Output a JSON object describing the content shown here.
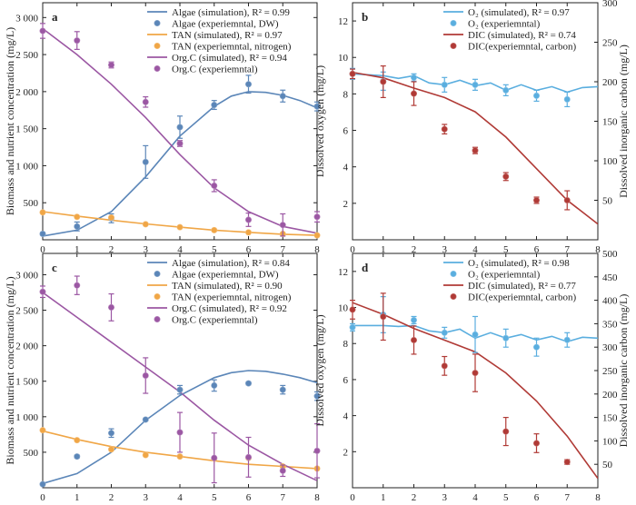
{
  "chart_data": [
    {
      "type": "line",
      "panel_label": "a",
      "xlabel": "Time (d)",
      "ylabel": "Biomass and nutrient concentration (mg/L)",
      "xlim": [
        0,
        8
      ],
      "ylim": [
        0,
        3200
      ],
      "xticks": [
        0,
        1,
        2,
        3,
        4,
        5,
        6,
        7,
        8
      ],
      "yticks": [
        500,
        1000,
        1500,
        2000,
        2500,
        3000
      ],
      "ytick_labels": [
        "500",
        "1 000",
        "1 500",
        "2 000",
        "2 500",
        "3 000"
      ],
      "legend_position": "top-right",
      "colors": {
        "algae": "#5b86b8",
        "tan": "#f0a646",
        "orgc": "#9b57a3"
      },
      "series": [
        {
          "name": "Algae (simulation), R² = 0.99",
          "kind": "line",
          "key": "algae",
          "x": [
            0,
            1,
            2,
            3,
            4,
            5,
            5.5,
            6,
            6.5,
            7,
            7.5,
            8
          ],
          "y": [
            50,
            130,
            380,
            850,
            1400,
            1800,
            1940,
            2000,
            1990,
            1950,
            1880,
            1780
          ]
        },
        {
          "name": "Algae (experiemntal, DW)",
          "kind": "points",
          "key": "algae",
          "x": [
            0,
            1,
            2,
            3,
            4,
            5,
            6,
            7,
            8
          ],
          "y": [
            80,
            180,
            290,
            1050,
            1520,
            1820,
            2100,
            1940,
            1800
          ],
          "err": [
            20,
            60,
            60,
            220,
            150,
            60,
            120,
            80,
            60
          ]
        },
        {
          "name": "TAN (simulated), R² = 0.97",
          "kind": "line",
          "key": "tan",
          "x": [
            0,
            1,
            2,
            3,
            4,
            5,
            6,
            7,
            8
          ],
          "y": [
            380,
            320,
            265,
            215,
            170,
            130,
            100,
            75,
            60
          ]
        },
        {
          "name": "TAN (experiemntal, nitrogen)",
          "kind": "points",
          "key": "tan",
          "x": [
            0,
            1,
            2,
            3,
            4,
            5,
            6,
            7,
            8
          ],
          "y": [
            370,
            310,
            300,
            210,
            170,
            130,
            100,
            80,
            60
          ],
          "err": [
            10,
            10,
            10,
            10,
            10,
            10,
            10,
            10,
            10
          ]
        },
        {
          "name": "Org.C (simulated), R² = 0.94",
          "kind": "line",
          "key": "orgc",
          "x": [
            0,
            1,
            2,
            3,
            4,
            5,
            6,
            7,
            8
          ],
          "y": [
            2850,
            2500,
            2100,
            1650,
            1150,
            700,
            380,
            180,
            90
          ]
        },
        {
          "name": "Org.C (experiemntal)",
          "kind": "points",
          "key": "orgc",
          "x": [
            0,
            1,
            2,
            3,
            4,
            5,
            6,
            7,
            8
          ],
          "y": [
            2820,
            2690,
            2360,
            1860,
            1300,
            730,
            270,
            200,
            310
          ],
          "err": [
            100,
            120,
            40,
            70,
            40,
            80,
            90,
            150,
            70
          ]
        }
      ]
    },
    {
      "type": "line",
      "panel_label": "b",
      "xlabel": "Time (d)",
      "ylabel": "Dissolved oxygen (mg/L)",
      "ylabel_right": "Dissolved inorganic carbon (mg/L)",
      "xlim": [
        0,
        8
      ],
      "ylim": [
        0,
        13
      ],
      "ylim_right": [
        0,
        300
      ],
      "xticks": [
        0,
        1,
        2,
        3,
        4,
        5,
        6,
        7,
        8
      ],
      "yticks": [
        2,
        4,
        6,
        8,
        10,
        12
      ],
      "yticks_right": [
        50,
        100,
        150,
        200,
        250,
        300
      ],
      "legend_position": "top-right",
      "colors": {
        "o2": "#5aaedf",
        "dic": "#b03a36"
      },
      "series": [
        {
          "name": "O₂ (simulated), R² = 0.97",
          "kind": "line",
          "key": "o2",
          "axis": "left",
          "x": [
            0,
            0.5,
            1,
            1.5,
            2,
            2.5,
            3,
            3.5,
            4,
            4.5,
            5,
            5.5,
            6,
            6.5,
            7,
            7.5,
            8
          ],
          "y": [
            9.1,
            9.05,
            9.0,
            8.85,
            9.0,
            8.6,
            8.5,
            8.75,
            8.45,
            8.6,
            8.2,
            8.5,
            8.2,
            8.4,
            8.1,
            8.35,
            8.4
          ]
        },
        {
          "name": "O₂ (experiemntal)",
          "kind": "points",
          "key": "o2",
          "axis": "left",
          "x": [
            0,
            1,
            2,
            3,
            4,
            5,
            6,
            7
          ],
          "y": [
            9.1,
            8.7,
            8.9,
            8.5,
            8.5,
            8.2,
            7.9,
            7.7
          ],
          "err": [
            0.3,
            0.5,
            0.2,
            0.4,
            0.3,
            0.3,
            0.3,
            0.4
          ]
        },
        {
          "name": "DIC (simulated), R² = 0.74",
          "kind": "line",
          "key": "dic",
          "axis": "right",
          "x": [
            0,
            1,
            2,
            3,
            4,
            5,
            6,
            7,
            8
          ],
          "y": [
            212,
            205,
            192,
            180,
            162,
            130,
            90,
            50,
            20
          ]
        },
        {
          "name": "DIC(experiemntal, carbon)",
          "kind": "points",
          "key": "dic",
          "axis": "right",
          "x": [
            0,
            1,
            2,
            3,
            4,
            5,
            6,
            7
          ],
          "y": [
            210,
            200,
            185,
            140,
            113,
            80,
            50,
            50
          ],
          "err": [
            6,
            20,
            15,
            6,
            4,
            5,
            4,
            12
          ]
        }
      ]
    },
    {
      "type": "line",
      "panel_label": "c",
      "xlabel": "Time (d)",
      "ylabel": "Biomass and nutrient concentration (mg/L)",
      "xlim": [
        0,
        8
      ],
      "ylim": [
        0,
        3300
      ],
      "xticks": [
        0,
        1,
        2,
        3,
        4,
        5,
        6,
        7,
        8
      ],
      "yticks": [
        500,
        1000,
        1500,
        2000,
        2500,
        3000
      ],
      "ytick_labels": [
        "500",
        "1 000",
        "1 500",
        "2 000",
        "2 500",
        "3 000"
      ],
      "legend_position": "top-right",
      "colors": {
        "algae": "#5b86b8",
        "tan": "#f0a646",
        "orgc": "#9b57a3"
      },
      "series": [
        {
          "name": "Algae (simulation), R² = 0.84",
          "kind": "line",
          "key": "algae",
          "x": [
            0,
            1,
            2,
            3,
            4,
            5,
            5.5,
            6,
            6.5,
            7,
            7.5,
            8
          ],
          "y": [
            60,
            200,
            500,
            950,
            1300,
            1550,
            1620,
            1650,
            1640,
            1600,
            1550,
            1480
          ]
        },
        {
          "name": "Algae (experiemntal, DW)",
          "kind": "points",
          "key": "algae",
          "x": [
            0,
            1,
            2,
            3,
            4,
            5,
            6,
            7,
            8
          ],
          "y": [
            50,
            440,
            770,
            960,
            1380,
            1440,
            1470,
            1380,
            1290
          ],
          "err": [
            10,
            20,
            60,
            10,
            60,
            80,
            20,
            60,
            60
          ]
        },
        {
          "name": "TAN (simulated), R² = 0.90",
          "kind": "line",
          "key": "tan",
          "x": [
            0,
            1,
            2,
            3,
            4,
            5,
            6,
            7,
            8
          ],
          "y": [
            800,
            680,
            580,
            500,
            440,
            380,
            330,
            300,
            270
          ]
        },
        {
          "name": "TAN (experiemntal, nitrogen)",
          "kind": "points",
          "key": "tan",
          "x": [
            0,
            1,
            2,
            3,
            4,
            5,
            6,
            7,
            8
          ],
          "y": [
            810,
            670,
            540,
            460,
            440,
            410,
            420,
            300,
            270
          ],
          "err": [
            10,
            10,
            10,
            10,
            10,
            10,
            10,
            10,
            10
          ]
        },
        {
          "name": "Org.C (simulated), R² = 0.92",
          "kind": "line",
          "key": "orgc",
          "x": [
            0,
            1,
            2,
            3,
            4,
            5,
            6,
            7,
            8
          ],
          "y": [
            2750,
            2400,
            2050,
            1700,
            1350,
            950,
            600,
            330,
            100
          ]
        },
        {
          "name": "Org.C (experiemntal)",
          "kind": "points",
          "key": "orgc",
          "x": [
            0,
            1,
            2,
            3,
            4,
            5,
            6,
            7,
            8
          ],
          "y": [
            2760,
            2850,
            2540,
            1580,
            780,
            420,
            430,
            240,
            520
          ],
          "err": [
            80,
            130,
            190,
            250,
            280,
            350,
            280,
            80,
            380
          ]
        }
      ]
    },
    {
      "type": "line",
      "panel_label": "d",
      "xlabel": "Time (d)",
      "ylabel": "Dissolved oxygen (mg/L)",
      "ylabel_right": "Dissolved inorganic carbon (mg/L)",
      "xlim": [
        0,
        8
      ],
      "ylim": [
        0,
        13
      ],
      "ylim_right": [
        0,
        500
      ],
      "xticks": [
        0,
        1,
        2,
        3,
        4,
        5,
        6,
        7,
        8
      ],
      "yticks": [
        2,
        4,
        6,
        8,
        10,
        12
      ],
      "yticks_right": [
        50,
        100,
        150,
        200,
        250,
        300,
        350,
        400,
        450,
        500
      ],
      "legend_position": "top-right",
      "colors": {
        "o2": "#5aaedf",
        "dic": "#b03a36"
      },
      "series": [
        {
          "name": "O₂ (simulated), R² = 0.98",
          "kind": "line",
          "key": "o2",
          "axis": "left",
          "x": [
            0,
            0.5,
            1,
            1.5,
            2,
            2.5,
            3,
            3.5,
            4,
            4.5,
            5,
            5.5,
            6,
            6.5,
            7,
            7.5,
            8
          ],
          "y": [
            9.0,
            9.0,
            9.0,
            8.95,
            9.0,
            8.7,
            8.6,
            8.8,
            8.3,
            8.6,
            8.3,
            8.5,
            8.2,
            8.4,
            8.1,
            8.35,
            8.3
          ]
        },
        {
          "name": "O₂ (experiemntal)",
          "kind": "points",
          "key": "o2",
          "axis": "left",
          "x": [
            0,
            1,
            2,
            3,
            4,
            5,
            6,
            7
          ],
          "y": [
            8.9,
            9.6,
            9.3,
            8.6,
            8.5,
            8.3,
            7.8,
            8.2
          ],
          "err": [
            0.2,
            1.0,
            0.2,
            0.3,
            1.0,
            0.5,
            0.5,
            0.4
          ]
        },
        {
          "name": "DIC (simulated), R² = 0.77",
          "kind": "line",
          "key": "dic",
          "axis": "right",
          "x": [
            0,
            1,
            2,
            3,
            4,
            5,
            6,
            7,
            8
          ],
          "y": [
            395,
            370,
            340,
            315,
            290,
            245,
            185,
            110,
            20
          ]
        },
        {
          "name": "DIC(experiemntal, carbon)",
          "kind": "points",
          "key": "dic",
          "axis": "right",
          "x": [
            0,
            1,
            2,
            3,
            4,
            5,
            6,
            7
          ],
          "y": [
            380,
            365,
            315,
            260,
            245,
            120,
            95,
            55
          ],
          "err": [
            20,
            50,
            30,
            20,
            40,
            30,
            20,
            5
          ]
        }
      ]
    }
  ]
}
